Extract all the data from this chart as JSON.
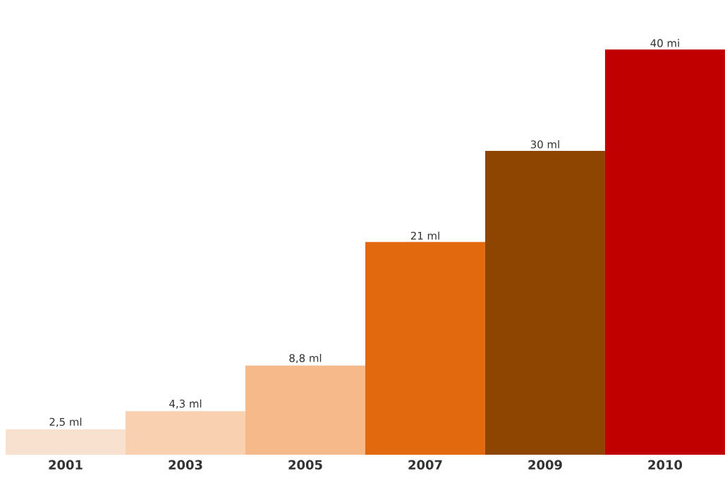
{
  "chart_data": {
    "type": "bar",
    "categories": [
      "2001",
      "2003",
      "2005",
      "2007",
      "2009",
      "2010"
    ],
    "values": [
      2.5,
      4.3,
      8.8,
      21,
      30,
      40
    ],
    "colors": [
      "#f9e1d0",
      "#f9d1b1",
      "#f6b98a",
      "#e2690e",
      "#8f4502",
      "#c00000"
    ],
    "value_labels": [
      "2,5 ml",
      "4,3 ml",
      "8,8 ml",
      "21 ml",
      "30 ml",
      "40 mi"
    ]
  }
}
